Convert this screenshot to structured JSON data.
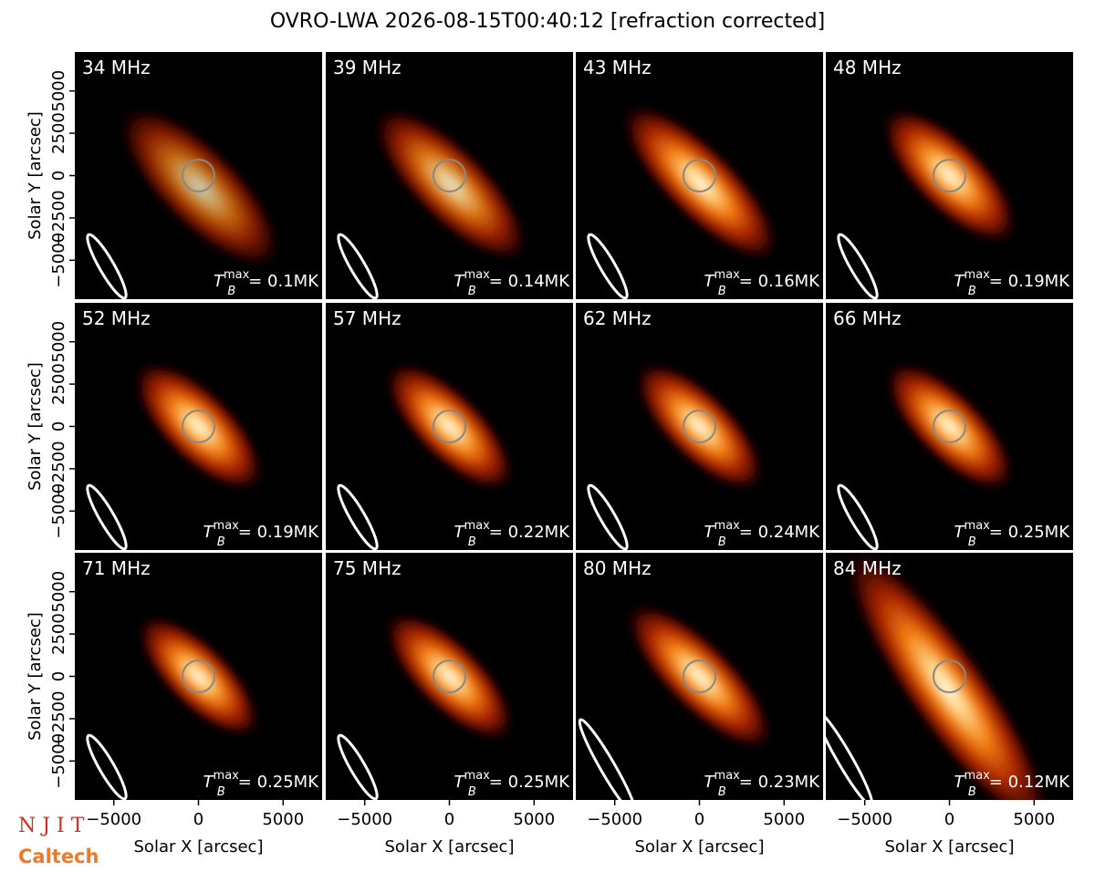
{
  "title": "OVRO-LWA 2026-08-15T00:40:12 [refraction corrected]",
  "xlabel": "Solar X [arcsec]",
  "ylabel": "Solar Y [arcsec]",
  "xlim": [
    -7300,
    7300
  ],
  "ylim": [
    -7300,
    7300
  ],
  "xticks": [
    {
      "value": -5000,
      "label": "−5000"
    },
    0,
    5000
  ],
  "yticks": [
    {
      "value": -5000,
      "label": "−5000"
    },
    {
      "value": -2500,
      "label": "−2500"
    },
    0,
    2500,
    5000
  ],
  "tb_symbol": "T",
  "tb_sub": "B",
  "tb_sup": "max",
  "panels": [
    {
      "label": "34 MHz",
      "tb_max": "= 0.1MK"
    },
    {
      "label": "39 MHz",
      "tb_max": "= 0.14MK"
    },
    {
      "label": "43 MHz",
      "tb_max": "= 0.16MK"
    },
    {
      "label": "48 MHz",
      "tb_max": "= 0.19MK"
    },
    {
      "label": "52 MHz",
      "tb_max": "= 0.19MK"
    },
    {
      "label": "57 MHz",
      "tb_max": "= 0.22MK"
    },
    {
      "label": "62 MHz",
      "tb_max": "= 0.24MK"
    },
    {
      "label": "66 MHz",
      "tb_max": "= 0.25MK"
    },
    {
      "label": "71 MHz",
      "tb_max": "= 0.25MK"
    },
    {
      "label": "75 MHz",
      "tb_max": "= 0.25MK"
    },
    {
      "label": "80 MHz",
      "tb_max": "= 0.23MK"
    },
    {
      "label": "84 MHz",
      "tb_max": "= 0.12MK"
    }
  ],
  "logos": [
    "N J I T",
    "Caltech"
  ]
}
